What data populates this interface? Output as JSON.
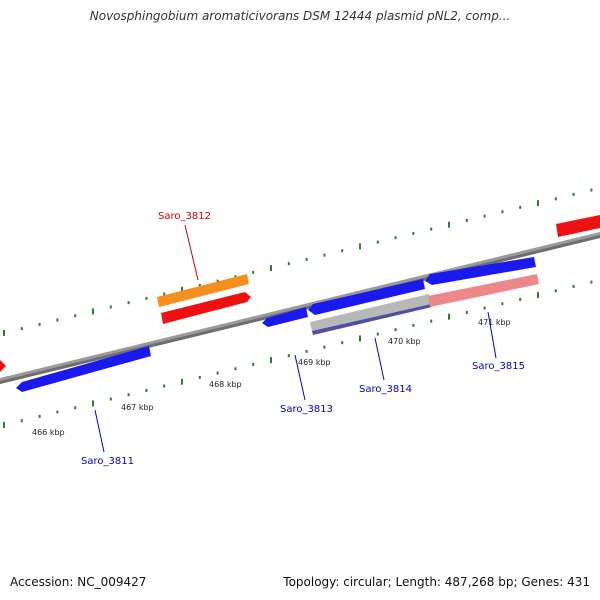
{
  "title": "Novosphingobium aromaticivorans DSM 12444 plasmid pNL2, comp...",
  "footer": {
    "accession": "Accession: NC_009427",
    "topology": "Topology: circular; Length: 487,268 bp; Genes: 431"
  },
  "colors": {
    "backbone": "#8a8a8a",
    "tick": "#2e7d32",
    "forward_gene": "#ee1111",
    "reverse_gene": "#1a1aee",
    "highlight_gene": "#f5901e",
    "pink_gene": "#ee8888",
    "grey_gene": "#b8b8b8",
    "purple_gene": "#5050a0",
    "forward_label": "#cc0000",
    "reverse_label": "#0000cc"
  },
  "kbp_labels": [
    "466 kbp",
    "467 kbp",
    "468 kbp",
    "469 kbp",
    "470 kbp",
    "471 kbp"
  ],
  "genes": [
    {
      "label": "Saro_3811",
      "strand": "reverse"
    },
    {
      "label": "Saro_3812",
      "strand": "forward"
    },
    {
      "label": "Saro_3813",
      "strand": "reverse"
    },
    {
      "label": "Saro_3814",
      "strand": "reverse"
    },
    {
      "label": "Saro_3815",
      "strand": "reverse"
    }
  ]
}
